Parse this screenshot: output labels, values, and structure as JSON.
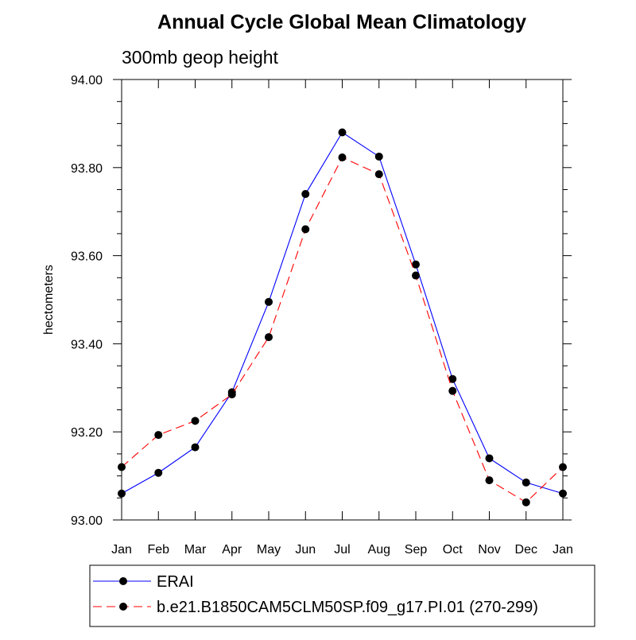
{
  "chart_data": {
    "type": "line",
    "title": "Annual Cycle Global Mean Climatology",
    "subtitle": "300mb geop height",
    "ylabel": "hectometers",
    "xlabel": "",
    "categories": [
      "Jan",
      "Feb",
      "Mar",
      "Apr",
      "May",
      "Jun",
      "Jul",
      "Aug",
      "Sep",
      "Oct",
      "Nov",
      "Dec",
      "Jan"
    ],
    "ylim": [
      93.0,
      94.0
    ],
    "yticks": [
      "93.00",
      "93.20",
      "93.40",
      "93.60",
      "93.80",
      "94.00"
    ],
    "grid": false,
    "legend_position": "bottom",
    "series": [
      {
        "name": "ERAI",
        "color": "#0000ff",
        "dash": "solid",
        "values": [
          93.06,
          93.107,
          93.165,
          93.29,
          93.495,
          93.74,
          93.88,
          93.825,
          93.58,
          93.32,
          93.14,
          93.085,
          93.06
        ]
      },
      {
        "name": "b.e21.B1850CAM5CLM50SP.f09_g17.PI.01 (270-299)",
        "color": "#ff0000",
        "dash": "dashed",
        "values": [
          93.12,
          93.193,
          93.225,
          93.285,
          93.415,
          93.66,
          93.823,
          93.785,
          93.555,
          93.293,
          93.09,
          93.04,
          93.12
        ]
      }
    ]
  }
}
